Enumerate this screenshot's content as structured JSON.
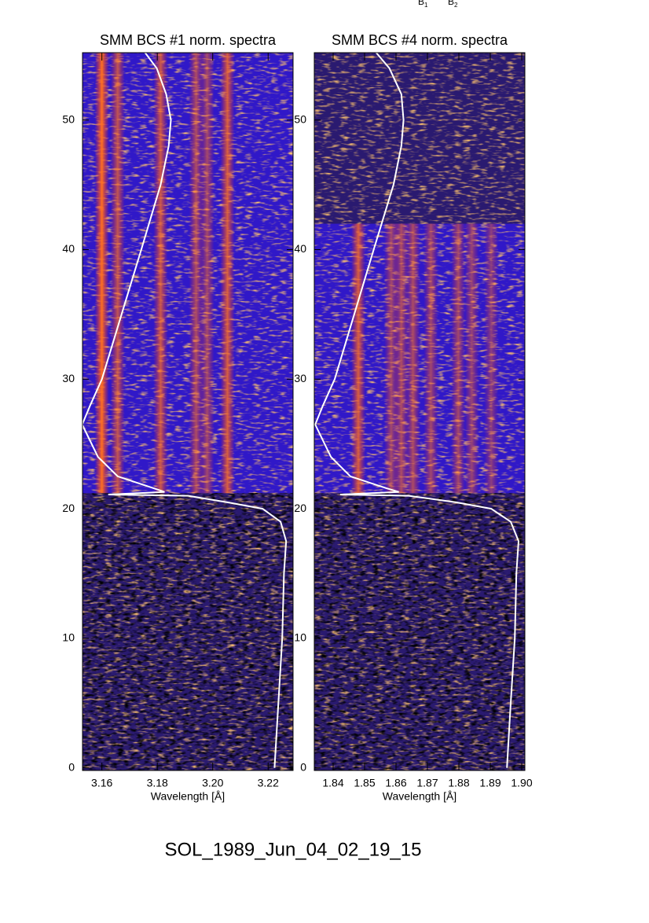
{
  "figure_title": "SOL_1989_Jun_04_02_19_15",
  "annotations": [
    {
      "text": "B",
      "subscript": "1"
    },
    {
      "text": "B",
      "subscript": "2"
    }
  ],
  "chart_data": [
    {
      "type": "spectrogram",
      "title": "SMM BCS #1 norm. spectra",
      "x_label": "Wavelength [Å]",
      "xlim": [
        3.153,
        3.229
      ],
      "ylim": [
        -0.2,
        55.2
      ],
      "xticks": [
        3.16,
        3.18,
        {
          "value": 3.2,
          "label": "3.20"
        },
        3.22
      ],
      "yticks": [
        0,
        10,
        20,
        30,
        40,
        50
      ],
      "line_wavelengths": [
        3.16,
        3.1657,
        3.1812,
        3.194,
        3.198,
        3.2053
      ],
      "line_strengths": [
        1.0,
        0.7,
        0.75,
        0.6,
        0.55,
        0.8
      ],
      "emission_y": [
        21.2,
        55.2
      ],
      "curve": {
        "color": "#ffffff",
        "y": [
          0,
          5,
          10,
          15,
          17.5,
          19,
          20,
          20.5,
          21,
          21.1,
          21.3,
          21.6,
          22.5,
          24,
          26.5,
          28,
          30,
          35,
          40,
          45,
          48,
          50,
          52,
          54,
          55.2
        ],
        "x": [
          3.2223,
          3.2237,
          3.2251,
          3.2257,
          3.2265,
          3.2245,
          3.218,
          3.2053,
          3.1911,
          3.1623,
          3.1826,
          3.1784,
          3.1657,
          3.1586,
          3.1529,
          3.1558,
          3.16,
          3.1671,
          3.1742,
          3.1812,
          3.1841,
          3.1849,
          3.1832,
          3.1798,
          3.1756
        ]
      }
    },
    {
      "type": "spectrogram",
      "title": "SMM BCS #4 norm. spectra",
      "x_label": "Wavelength [Å]",
      "xlim": [
        1.834,
        1.901
      ],
      "ylim": [
        -0.2,
        55.2
      ],
      "xticks": [
        1.84,
        1.85,
        1.86,
        1.87,
        1.88,
        1.89,
        {
          "value": 1.9,
          "label": "1.90"
        }
      ],
      "yticks": [
        0,
        10,
        20,
        30,
        40,
        50
      ],
      "line_wavelengths": [
        1.848,
        1.8585,
        1.8617,
        1.8654,
        1.8711,
        1.8798,
        1.8841,
        1.8903
      ],
      "line_strengths": [
        0.8,
        0.55,
        0.6,
        0.6,
        0.55,
        0.55,
        0.5,
        0.45
      ],
      "emission_y": [
        21.2,
        42
      ],
      "curve": {
        "color": "#ffffff",
        "y": [
          0,
          5,
          10,
          15,
          17.5,
          19,
          20,
          20.5,
          21,
          21.1,
          21.3,
          21.6,
          22.5,
          24,
          26.5,
          28,
          30,
          35,
          40,
          45,
          48,
          50,
          52,
          54,
          55.2
        ],
        "x": [
          1.8953,
          1.8965,
          1.8978,
          1.8983,
          1.899,
          1.8965,
          1.8903,
          1.8791,
          1.8641,
          1.8422,
          1.8609,
          1.8567,
          1.8455,
          1.8393,
          1.8343,
          1.8368,
          1.8405,
          1.8467,
          1.8529,
          1.8592,
          1.8617,
          1.8624,
          1.8617,
          1.8579,
          1.8537
        ]
      }
    }
  ]
}
